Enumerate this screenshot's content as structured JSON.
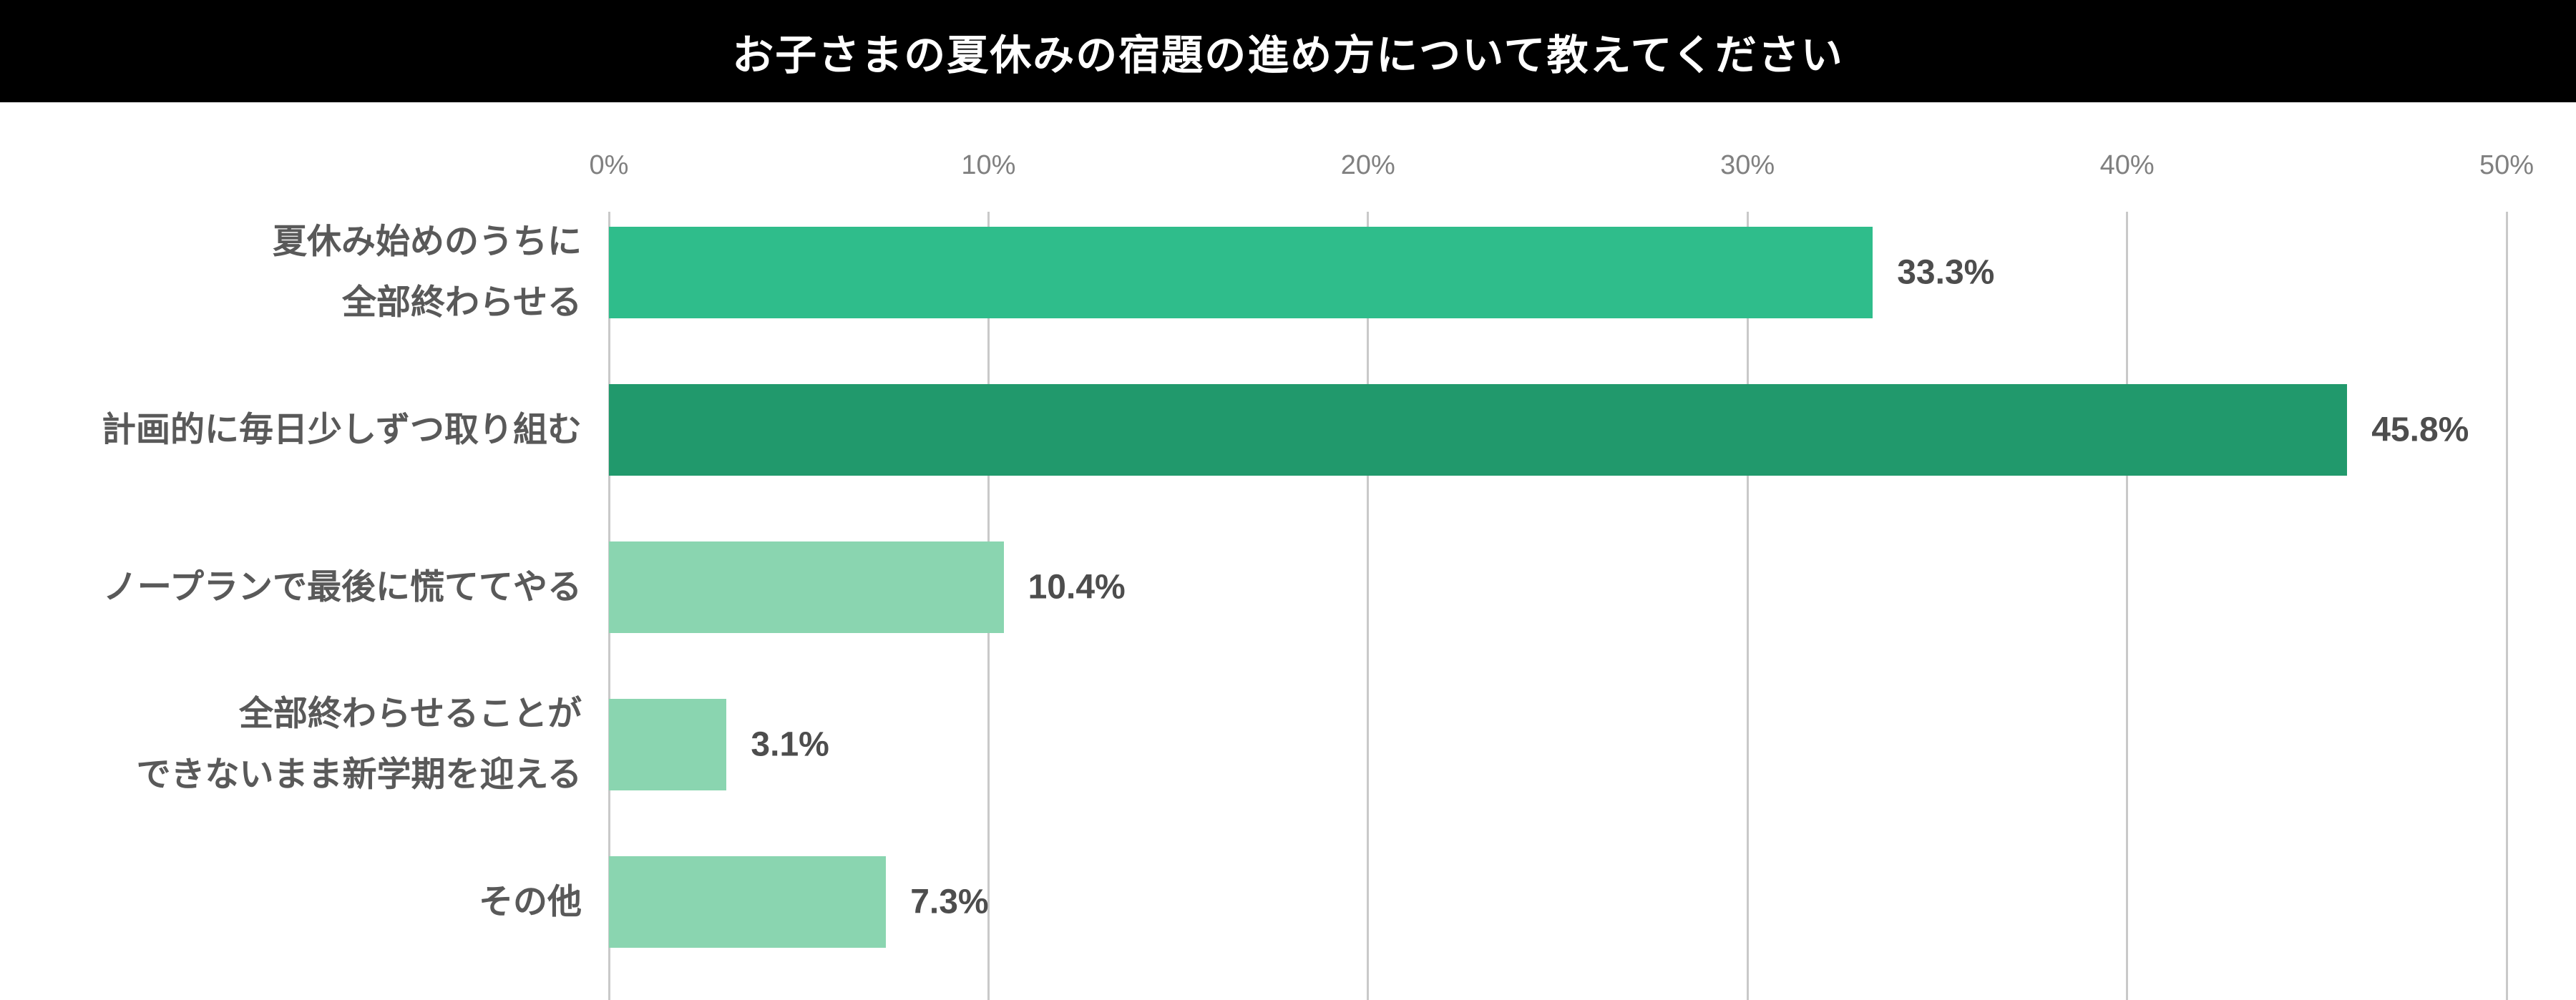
{
  "header": {
    "title": "お子さまの夏休みの宿題の進め方について教えてください",
    "bg_color": "#000000",
    "text_color": "#ffffff"
  },
  "chart_data": {
    "type": "bar",
    "orientation": "horizontal",
    "title": "お子さまの夏休みの宿題の進め方について教えてください",
    "categories": [
      "夏休み始めのうちに\n全部終わらせる",
      "計画的に毎日少しずつ取り組む",
      "ノープランで最後に慌ててやる",
      "全部終わらせることが\nできないまま新学期を迎える",
      "その他"
    ],
    "values": [
      33.3,
      45.8,
      10.4,
      3.1,
      7.3
    ],
    "value_labels": [
      "33.3%",
      "45.8%",
      "10.4%",
      "3.1%",
      "7.3%"
    ],
    "bar_colors": [
      "#2fbd8b",
      "#21996c",
      "#8ad5b0",
      "#8ad5b0",
      "#8ad5b0"
    ],
    "x_ticks": [
      "0%",
      "10%",
      "20%",
      "30%",
      "40%",
      "50%"
    ],
    "x_tick_values": [
      0,
      10,
      20,
      30,
      40,
      50
    ],
    "xlim": [
      0,
      50
    ],
    "xlabel": "",
    "ylabel": "",
    "grid": "vertical",
    "gridline_color": "#c9c9c9",
    "legend": "none",
    "label_color": "#595959",
    "value_label_color": "#4d4d4d",
    "tick_label_color": "#808080"
  }
}
